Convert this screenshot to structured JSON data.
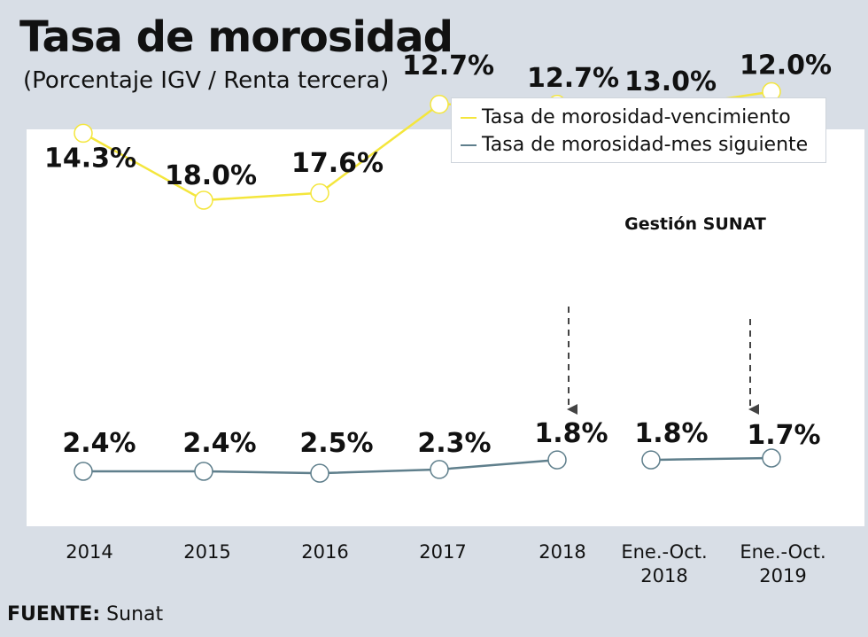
{
  "title": "Tasa de morosidad",
  "subtitle": "(Porcentaje IGV / Renta tercera)",
  "source_label": "FUENTE:",
  "source_value": "Sunat",
  "annotation": "Gestión SUNAT",
  "colors": {
    "vencimiento": "#f4e63c",
    "mes_siguiente": "#5f7f8c",
    "point_fill": "#ffffff",
    "arrow": "#444444"
  },
  "chart_data": {
    "type": "line",
    "categories": [
      [
        "2014"
      ],
      [
        "2015"
      ],
      [
        "2016"
      ],
      [
        "2017"
      ],
      [
        "2018"
      ],
      [
        "Ene.-Oct.",
        "2018"
      ],
      [
        "Ene.-Oct.",
        "2019"
      ]
    ],
    "series": [
      {
        "name": "Tasa de morosidad-vencimiento",
        "values": [
          14.3,
          18.0,
          17.6,
          12.7,
          12.7,
          13.0,
          12.0
        ],
        "labels": [
          "14.3%",
          "18.0%",
          "17.6%",
          "12.7%",
          "12.7%",
          "13.0%",
          "12.0%"
        ],
        "segments": [
          [
            0,
            4
          ],
          [
            5,
            6
          ]
        ]
      },
      {
        "name": "Tasa de morosidad-mes siguiente",
        "values": [
          2.4,
          2.4,
          2.5,
          2.3,
          1.8,
          1.8,
          1.7
        ],
        "labels": [
          "2.4%",
          "2.4%",
          "2.5%",
          "2.3%",
          "1.8%",
          "1.8%",
          "1.7%"
        ],
        "segments": [
          [
            0,
            4
          ],
          [
            5,
            6
          ]
        ]
      }
    ],
    "legend": "top-right",
    "grid": false
  }
}
